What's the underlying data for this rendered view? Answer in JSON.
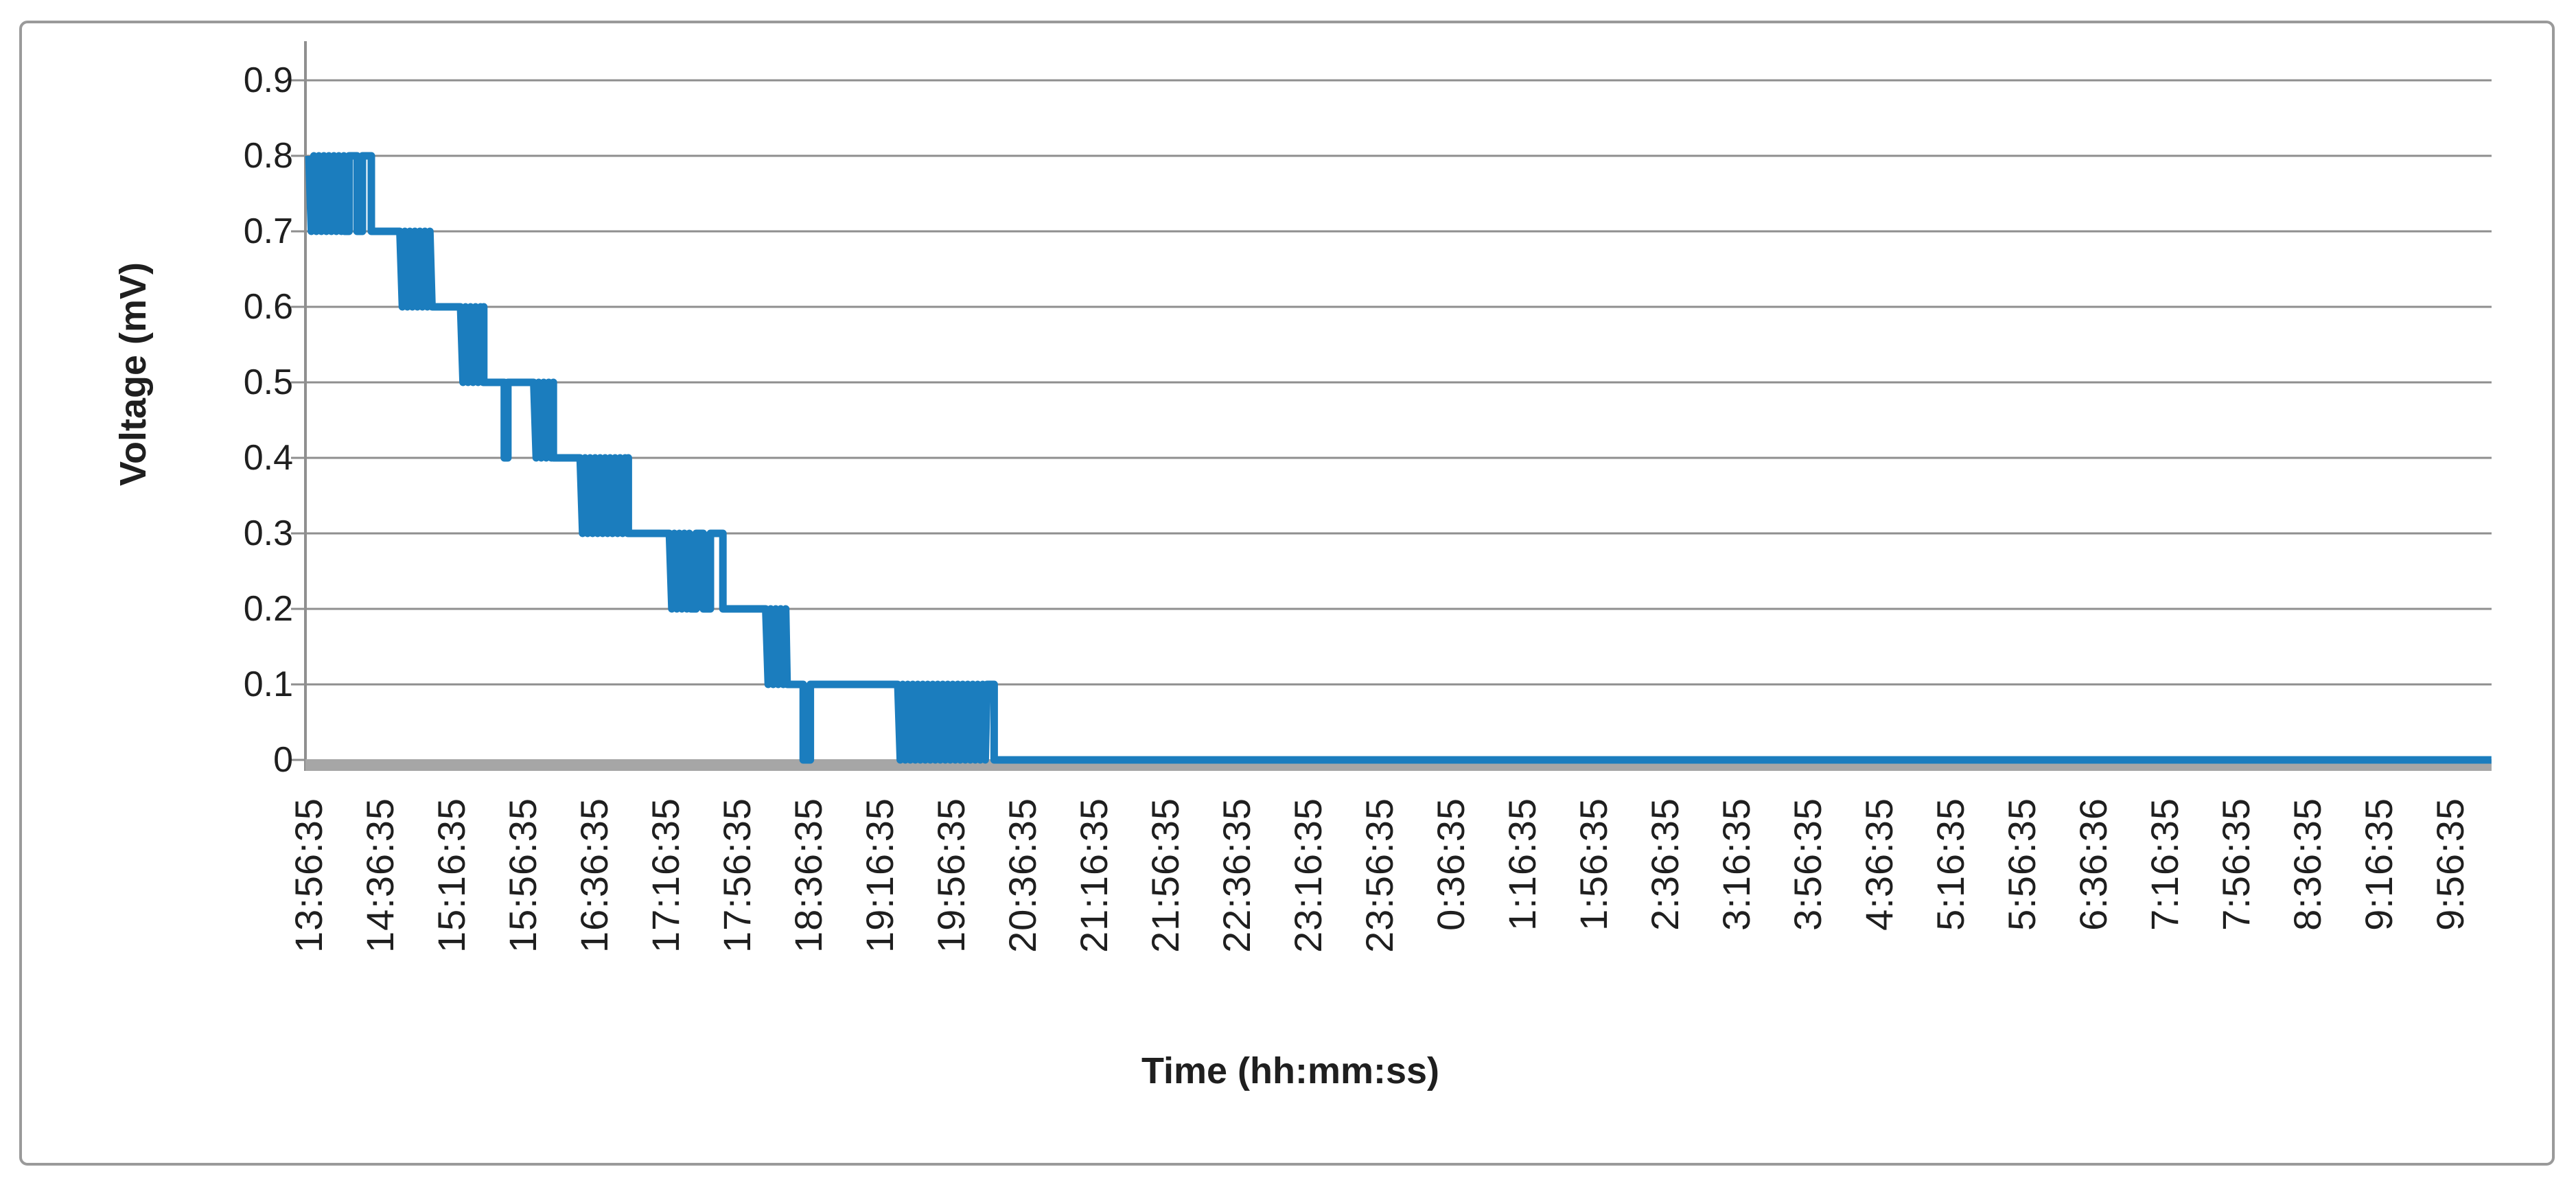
{
  "page": {
    "background_color": "#ffffff"
  },
  "frame": {
    "border_color": "#9a9a9a"
  },
  "chart_data": {
    "type": "line",
    "title": "",
    "xlabel": "Time (hh:mm:ss)",
    "ylabel": "Voltage (mV)",
    "legend": "none",
    "grid": "horizontal-major",
    "ylim": [
      0,
      0.9
    ],
    "y_major_unit": 0.1,
    "y_tick_labels": [
      "0.9",
      "0.8",
      "0.7",
      "0.6",
      "0.5",
      "0.4",
      "0.3",
      "0.2",
      "0.1",
      "0"
    ],
    "x_start_label": "13:56:35",
    "x_label_interval_minutes": 40,
    "x_tick_labels": [
      "13:56:35",
      "14:36:35",
      "15:16:35",
      "15:56:35",
      "16:36:35",
      "17:16:35",
      "17:56:35",
      "18:36:35",
      "19:16:35",
      "19:56:35",
      "20:36:35",
      "21:16:35",
      "21:56:35",
      "22:36:35",
      "23:16:35",
      "23:56:35",
      "0:36:35",
      "1:16:35",
      "1:56:35",
      "2:36:35",
      "3:16:35",
      "3:56:35",
      "4:36:35",
      "5:16:35",
      "5:56:35",
      "6:36:36",
      "7:16:35",
      "7:56:35",
      "8:36:35",
      "9:16:35",
      "9:56:35"
    ],
    "gridline_color": "#8f8f8f",
    "axis_line_color": "#8f8f8f",
    "baseline_color": "#a6a6a6",
    "text_color": "#1f1f1f",
    "oscillation_note": "osc segments are rapid alternation between high and low values, drawn as a solid band",
    "series": [
      {
        "name": "Voltage",
        "color": "#1b7dbe",
        "stroke_width": 11,
        "x_unit": "minutes_after_13:56:35",
        "y_unit": "mV",
        "segments": [
          {
            "type": "osc",
            "from": 0,
            "to": 20,
            "high": 0.8,
            "low": 0.7
          },
          {
            "type": "flat",
            "from": 20,
            "to": 22.5,
            "value": 0.7
          },
          {
            "type": "flat",
            "from": 22.5,
            "to": 27,
            "value": 0.8
          },
          {
            "type": "flat",
            "from": 27,
            "to": 30,
            "value": 0.7
          },
          {
            "type": "flat",
            "from": 30,
            "to": 35,
            "value": 0.8
          },
          {
            "type": "flat",
            "from": 35,
            "to": 51,
            "value": 0.7
          },
          {
            "type": "osc",
            "from": 51,
            "to": 69,
            "high": 0.7,
            "low": 0.6
          },
          {
            "type": "flat",
            "from": 69,
            "to": 85,
            "value": 0.6
          },
          {
            "type": "osc",
            "from": 85,
            "to": 98,
            "high": 0.6,
            "low": 0.5
          },
          {
            "type": "flat",
            "from": 98,
            "to": 109.5,
            "value": 0.5
          },
          {
            "type": "flat",
            "from": 109.5,
            "to": 111.5,
            "value": 0.4
          },
          {
            "type": "flat",
            "from": 111.5,
            "to": 126,
            "value": 0.5
          },
          {
            "type": "osc",
            "from": 126,
            "to": 137,
            "high": 0.5,
            "low": 0.4
          },
          {
            "type": "flat",
            "from": 137,
            "to": 152,
            "value": 0.4
          },
          {
            "type": "osc",
            "from": 152,
            "to": 179,
            "high": 0.4,
            "low": 0.3
          },
          {
            "type": "flat",
            "from": 179,
            "to": 202,
            "value": 0.3
          },
          {
            "type": "osc",
            "from": 202,
            "to": 214,
            "high": 0.3,
            "low": 0.2
          },
          {
            "type": "flat",
            "from": 214,
            "to": 217,
            "value": 0.2
          },
          {
            "type": "flat",
            "from": 217,
            "to": 221,
            "value": 0.3
          },
          {
            "type": "flat",
            "from": 221,
            "to": 225,
            "value": 0.2
          },
          {
            "type": "flat",
            "from": 225,
            "to": 232,
            "value": 0.3
          },
          {
            "type": "flat",
            "from": 232,
            "to": 256,
            "value": 0.2
          },
          {
            "type": "osc",
            "from": 256,
            "to": 268,
            "high": 0.2,
            "low": 0.1
          },
          {
            "type": "flat",
            "from": 268,
            "to": 277,
            "value": 0.1
          },
          {
            "type": "flat",
            "from": 277,
            "to": 281,
            "value": 0
          },
          {
            "type": "flat",
            "from": 281,
            "to": 330,
            "value": 0.1
          },
          {
            "type": "osc",
            "from": 330,
            "to": 380,
            "high": 0.1,
            "low": 0
          },
          {
            "type": "flat",
            "from": 380,
            "to": 384,
            "value": 0.1
          },
          {
            "type": "flat",
            "from": 384,
            "to": 1223,
            "value": 0
          }
        ]
      }
    ]
  }
}
